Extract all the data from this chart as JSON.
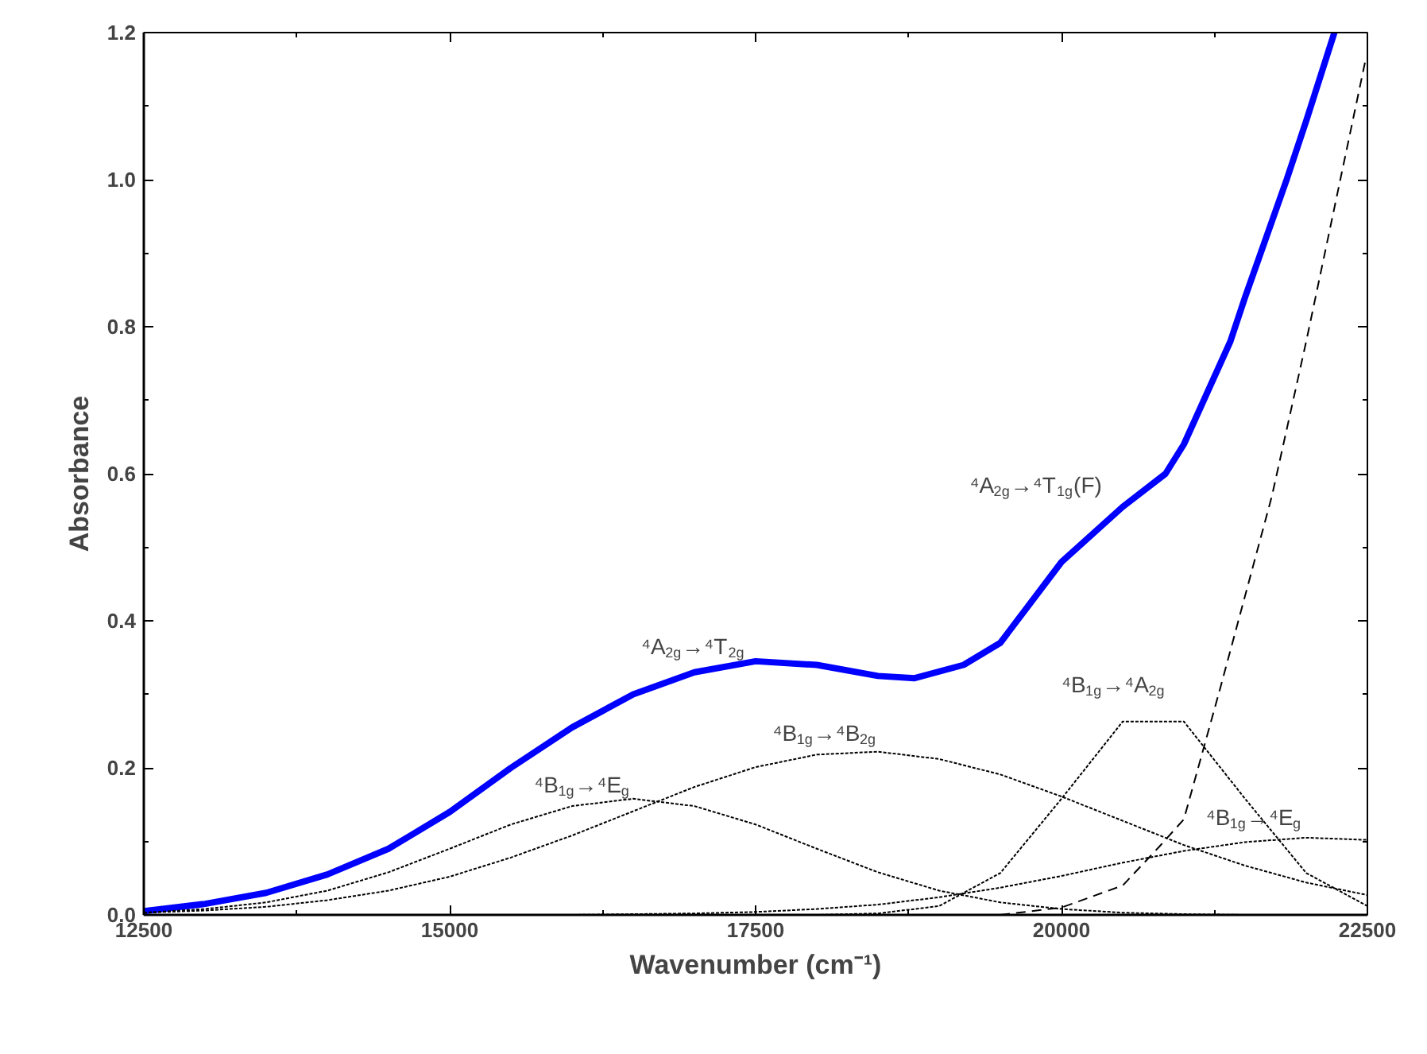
{
  "chart_data": {
    "type": "line",
    "xlabel": "Wavenumber (cm⁻¹)",
    "ylabel": "Absorbance",
    "xlim": [
      12500,
      22500
    ],
    "ylim": [
      0,
      1.2
    ],
    "xticks": [
      12500,
      15000,
      17500,
      20000,
      22500
    ],
    "yticks": [
      {
        "value": 0,
        "label": "0.0"
      },
      {
        "value": 0.2,
        "label": "0.2"
      },
      {
        "value": 0.4,
        "label": "0.4"
      },
      {
        "value": 0.6,
        "label": "0.6"
      },
      {
        "value": 0.8,
        "label": "0.8"
      },
      {
        "value": 1.0,
        "label": "1.0"
      },
      {
        "value": 1.2,
        "label": "1.2"
      }
    ],
    "x": [
      12500,
      13000,
      13500,
      14000,
      14500,
      15000,
      15500,
      16000,
      16500,
      17000,
      17500,
      18000,
      18500,
      19000,
      19500,
      20000,
      20500,
      21000,
      21500,
      22000,
      22500
    ],
    "grid": false,
    "marker": "none",
    "series": [
      {
        "color": "#0000ff",
        "line_style": "solid",
        "x": [
          12500,
          13000,
          13500,
          14000,
          14500,
          15000,
          15500,
          16000,
          16500,
          17000,
          17500,
          18000,
          18500,
          18800,
          19200,
          19500,
          20000,
          20500,
          20850,
          21000,
          21380,
          21500,
          21840,
          22000,
          22230
        ],
        "values": [
          0.005,
          0.015,
          0.03,
          0.055,
          0.09,
          0.14,
          0.2,
          0.255,
          0.3,
          0.33,
          0.345,
          0.34,
          0.325,
          0.322,
          0.34,
          0.37,
          0.48,
          0.555,
          0.6,
          0.64,
          0.78,
          0.84,
          1.0,
          1.08,
          1.2
        ]
      },
      {
        "color": "#000000",
        "line_style": "dotted",
        "values": [
          0.003,
          0.008,
          0.017,
          0.033,
          0.058,
          0.09,
          0.123,
          0.148,
          0.158,
          0.148,
          0.123,
          0.09,
          0.058,
          0.033,
          0.017,
          0.008,
          0.003,
          0.001,
          0,
          0,
          0
        ]
      },
      {
        "color": "#000000",
        "line_style": "dotted",
        "values": [
          0.003,
          0.006,
          0.011,
          0.02,
          0.033,
          0.052,
          0.078,
          0.108,
          0.141,
          0.174,
          0.201,
          0.218,
          0.222,
          0.212,
          0.191,
          0.161,
          0.128,
          0.095,
          0.067,
          0.044,
          0.027
        ]
      },
      {
        "color": "#000000",
        "line_style": "dotted",
        "values": [
          0,
          0,
          0,
          0,
          0,
          0,
          0,
          0,
          0,
          0,
          0,
          0,
          0.002,
          0.012,
          0.057,
          0.158,
          0.263,
          0.263,
          0.158,
          0.057,
          0.012
        ]
      },
      {
        "color": "#000000",
        "line_style": "dotted",
        "values": [
          0,
          0,
          0,
          0,
          0,
          0,
          0,
          0,
          0.001,
          0.002,
          0.004,
          0.008,
          0.014,
          0.024,
          0.037,
          0.053,
          0.071,
          0.087,
          0.099,
          0.105,
          0.102
        ]
      },
      {
        "color": "#000000",
        "line_style": "dashed",
        "x": [
          19500,
          20000,
          20500,
          20800,
          21000,
          21300,
          21720,
          22000,
          22490
        ],
        "values": [
          0,
          0.01,
          0.04,
          0.093,
          0.13,
          0.31,
          0.57,
          0.78,
          1.167
        ]
      }
    ],
    "annotations": [
      "⁴B$_{1g}$→⁴E$_{g}$",
      "⁴A$_{2g}$→⁴T$_{2g}$",
      "⁴B$_{1g}$→⁴B$_{2g}$",
      "⁴B$_{1g}$→⁴A$_{2g}$",
      "⁴B$_{1g}$→⁴E$_{g}$",
      "⁴A$_{2g}$→⁴T$_{1g}$(F)"
    ]
  }
}
